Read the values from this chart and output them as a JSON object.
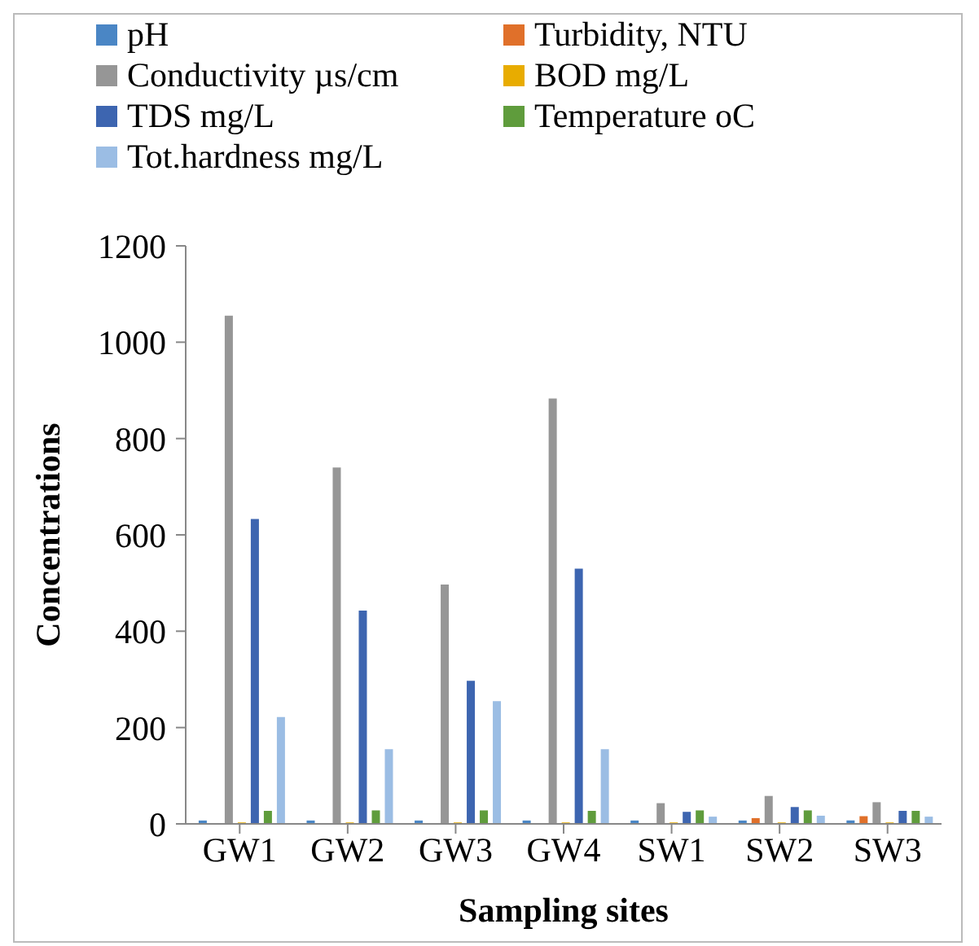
{
  "chart_data": {
    "type": "bar",
    "xlabel": "Sampling sites",
    "ylabel": "Concentrations",
    "categories": [
      "GW1",
      "GW2",
      "GW3",
      "GW4",
      "SW1",
      "SW2",
      "SW3"
    ],
    "series": [
      {
        "name": "pH",
        "color": "#4a86c5",
        "values": [
          7,
          7,
          7,
          7,
          7,
          7,
          7
        ]
      },
      {
        "name": "Turbidity, NTU",
        "color": "#e0702a",
        "values": [
          1,
          1,
          1,
          1,
          1,
          12,
          16
        ]
      },
      {
        "name": "Conductivity µs/cm",
        "color": "#969696",
        "values": [
          1055,
          740,
          497,
          883,
          43,
          58,
          45
        ]
      },
      {
        "name": "BOD mg/L",
        "color": "#e8ac00",
        "values": [
          3,
          3,
          3,
          3,
          3,
          3,
          3
        ]
      },
      {
        "name": "TDS mg/L",
        "color": "#3d65b0",
        "values": [
          633,
          443,
          297,
          530,
          25,
          35,
          27
        ]
      },
      {
        "name": "Temperature oC",
        "color": "#5f9c3c",
        "values": [
          27,
          28,
          28,
          27,
          28,
          28,
          27
        ]
      },
      {
        "name": "Tot.hardness mg/L",
        "color": "#9bbde4",
        "values": [
          222,
          155,
          255,
          155,
          15,
          17,
          15
        ]
      }
    ],
    "ylim": [
      0,
      1200
    ],
    "yticks": [
      0,
      200,
      400,
      600,
      800,
      1000,
      1200
    ],
    "grid": false,
    "legend": "top"
  }
}
